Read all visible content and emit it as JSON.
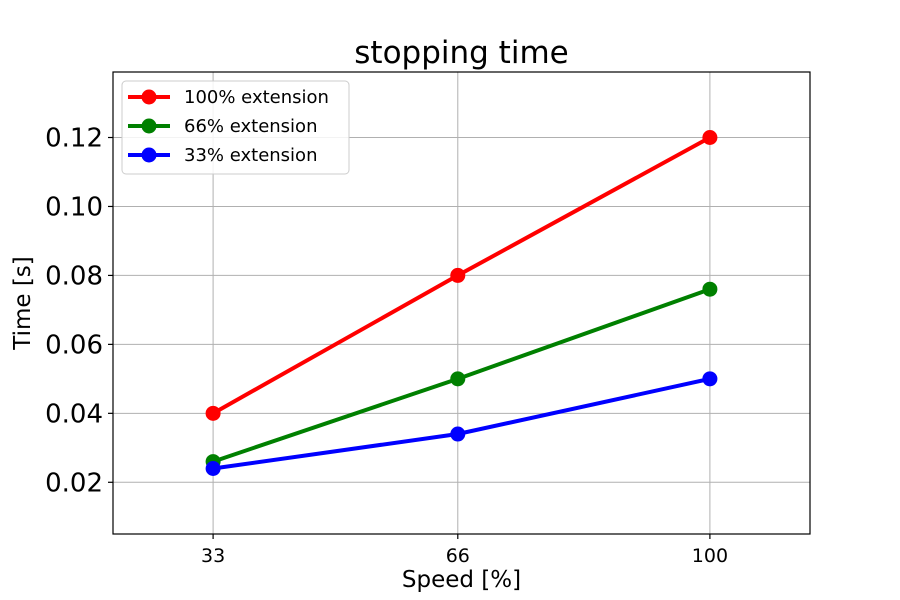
{
  "chart_data": {
    "type": "line",
    "title": "stopping time",
    "xlabel": "Speed [%]",
    "ylabel": "Time [s]",
    "x": [
      33,
      66,
      100
    ],
    "xticks": [
      "33",
      "66",
      "100"
    ],
    "xlim": [
      19.5,
      113.5
    ],
    "ylim": [
      0.005,
      0.139
    ],
    "yticks": [
      0.02,
      0.04,
      0.06,
      0.08,
      0.1,
      0.12
    ],
    "ytick_labels": [
      "0.02",
      "0.04",
      "0.06",
      "0.08",
      "0.10",
      "0.12"
    ],
    "grid": true,
    "legend_position": "upper-left",
    "series": [
      {
        "name": "100% extension",
        "color": "#ff0000",
        "values": [
          0.04,
          0.08,
          0.12
        ]
      },
      {
        "name": "66% extension",
        "color": "#008000",
        "values": [
          0.026,
          0.05,
          0.076
        ]
      },
      {
        "name": "33% extension",
        "color": "#0000ff",
        "values": [
          0.024,
          0.034,
          0.05
        ]
      }
    ]
  }
}
